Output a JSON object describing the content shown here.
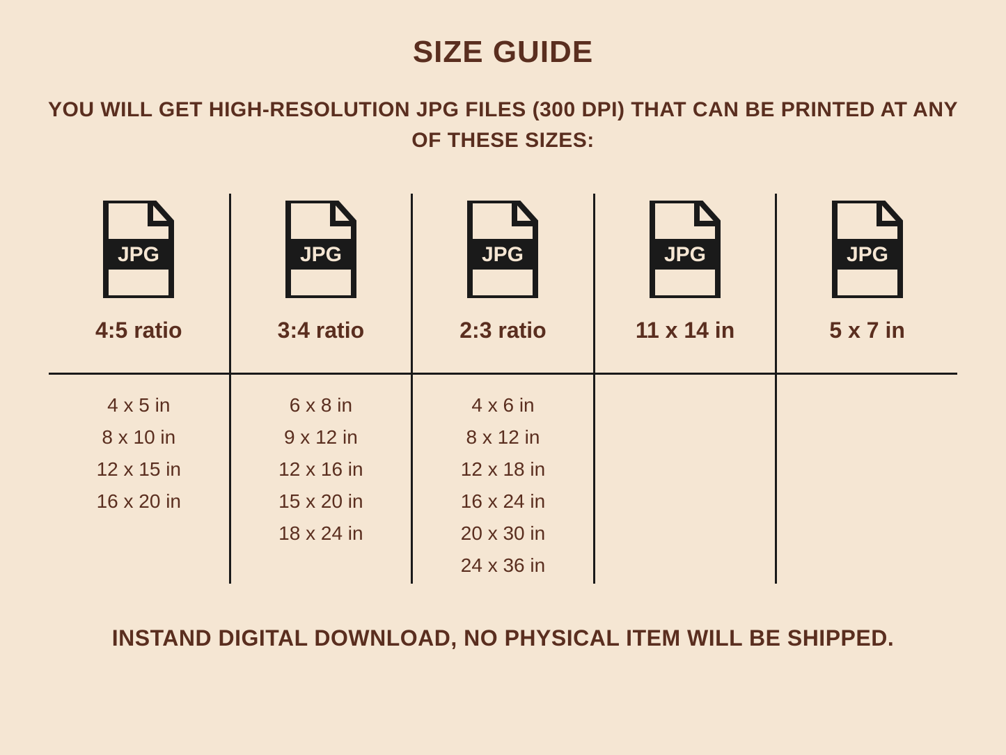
{
  "title": "SIZE GUIDE",
  "subtitle": "YOU WILL GET HIGH-RESOLUTION JPG FILES (300 DPI) THAT CAN BE PRINTED AT ANY OF THESE SIZES:",
  "footer": "INSTAND DIGITAL DOWNLOAD, NO PHYSICAL ITEM WILL BE SHIPPED.",
  "icon_label": "JPG",
  "colors": {
    "background": "#f5e6d3",
    "text": "#5a2e1f",
    "icon": "#1a1a1a",
    "lines": "#1a1a1a"
  },
  "columns": [
    {
      "heading": "4:5 ratio",
      "sizes": [
        "4 x 5 in",
        "8 x 10 in",
        "12 x 15 in",
        "16 x 20 in"
      ]
    },
    {
      "heading": "3:4 ratio",
      "sizes": [
        "6 x 8 in",
        "9 x 12 in",
        "12 x 16 in",
        "15 x 20 in",
        "18 x 24 in"
      ]
    },
    {
      "heading": "2:3 ratio",
      "sizes": [
        "4 x 6 in",
        "8 x 12 in",
        "12 x 18 in",
        "16 x 24 in",
        "20 x 30 in",
        "24 x 36 in"
      ]
    },
    {
      "heading": "11 x 14 in",
      "sizes": []
    },
    {
      "heading": "5 x 7 in",
      "sizes": []
    }
  ]
}
